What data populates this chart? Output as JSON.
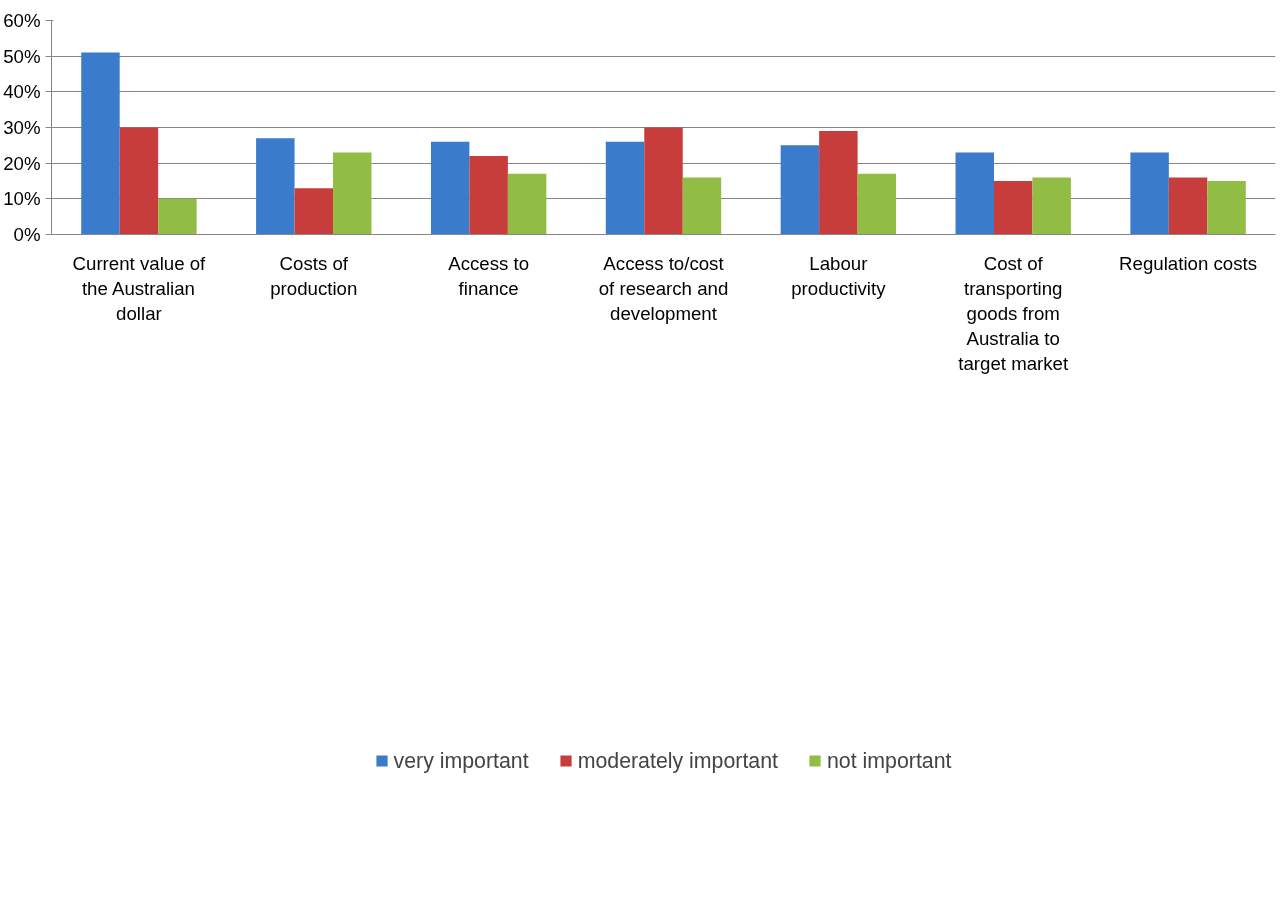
{
  "chart_data": {
    "type": "bar",
    "categories": [
      "Current value of the Australian dollar",
      "Costs of production",
      "Access to finance",
      "Access to/cost of research and development",
      "Labour productivity",
      "Cost of transporting goods from Australia to target market",
      "Regulation costs"
    ],
    "series": [
      {
        "name": "very important",
        "color": "#3b7bcb",
        "values": [
          51,
          27,
          26,
          26,
          25,
          23,
          23
        ]
      },
      {
        "name": "moderately important",
        "color": "#c73d3b",
        "values": [
          30,
          13,
          22,
          30,
          29,
          15,
          16
        ]
      },
      {
        "name": "not important",
        "color": "#92bd45",
        "values": [
          10,
          23,
          17,
          16,
          17,
          16,
          15
        ]
      }
    ],
    "ylim": [
      0,
      60
    ],
    "yticks": [
      {
        "value": 0,
        "label": "0%"
      },
      {
        "value": 10,
        "label": "10%"
      },
      {
        "value": 20,
        "label": "20%"
      },
      {
        "value": 30,
        "label": "30%"
      },
      {
        "value": 40,
        "label": "40%"
      },
      {
        "value": 50,
        "label": "50%"
      },
      {
        "value": 60,
        "label": "60%"
      }
    ],
    "grid": "y",
    "legend": "bottom"
  }
}
